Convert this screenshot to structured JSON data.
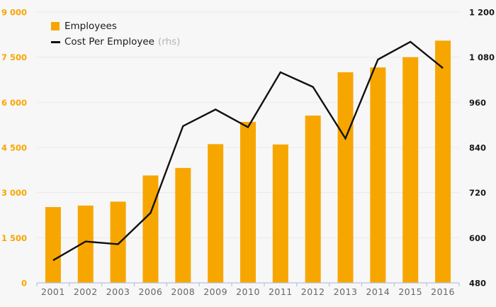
{
  "chart_data": {
    "type": "bar",
    "subtype": "bar-line-combo",
    "categories": [
      "2001",
      "2002",
      "2003",
      "2006",
      "2008",
      "2009",
      "2010",
      "2011",
      "2012",
      "2013",
      "2014",
      "2015",
      "2016"
    ],
    "series": [
      {
        "name": "Employees",
        "type": "bar",
        "axis": "left",
        "values": [
          2520,
          2570,
          2700,
          3570,
          3820,
          4610,
          5350,
          4600,
          5560,
          7000,
          7160,
          7500,
          8050
        ]
      },
      {
        "name": "Cost Per Employee (rhs)",
        "type": "line",
        "axis": "right",
        "values": [
          540,
          590,
          583,
          666,
          897,
          941,
          894,
          1040,
          1001,
          864,
          1074,
          1121,
          1051
        ]
      }
    ],
    "left_axis": {
      "min": 0,
      "max": 9000,
      "step": 1500,
      "tick_labels": [
        "0",
        "1 500",
        "3 000",
        "4 500",
        "6 000",
        "7 500",
        "9 000"
      ]
    },
    "right_axis": {
      "min": 480,
      "max": 1200,
      "step": 120,
      "tick_labels": [
        "480",
        "600",
        "720",
        "840",
        "960",
        "1 080",
        "1 200"
      ]
    },
    "grid": true,
    "legend_position": "top-left",
    "title": "",
    "xlabel": "",
    "ylabel": ""
  },
  "legend": {
    "items": [
      {
        "label": "Employees",
        "suffix": "",
        "swatch": "bar-square"
      },
      {
        "label": "Cost Per Employee",
        "suffix": "(rhs)",
        "swatch": "line-dash"
      }
    ]
  },
  "colors": {
    "background": "#f7f7f7",
    "bar": "#f7a600",
    "line": "#111111",
    "grid": "#e9e9e9",
    "axis_line": "#b7c2de",
    "left_label": "#f7a600",
    "right_label": "#1a1a1a",
    "x_label": "#666666",
    "rhs_note": "#b3b3b3"
  }
}
